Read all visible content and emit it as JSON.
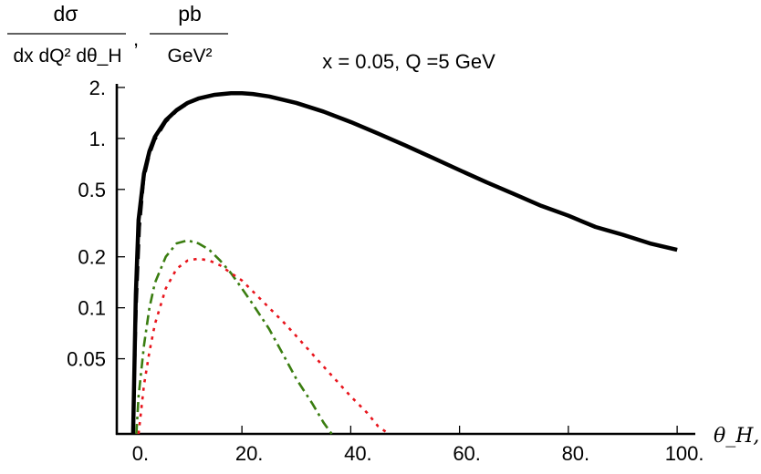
{
  "chart_data": {
    "type": "line",
    "title": "x = 0.05, Q =5 GeV",
    "ylabel": {
      "left_numerator": "dσ",
      "left_denominator": "dx dQ² dθ_H",
      "separator": ",",
      "right_numerator": "pb",
      "right_denominator": "GeV²"
    },
    "xlabel": "θ_H,°",
    "xlim": [
      -3,
      103
    ],
    "ylim": [
      0.018,
      2.1
    ],
    "yscale": "log",
    "xticks": [
      0,
      20,
      40,
      60,
      80,
      100
    ],
    "xtick_labels": [
      "0.",
      "20.",
      "40.",
      "60.",
      "80.",
      "100."
    ],
    "yticks": [
      0.05,
      0.1,
      0.2,
      0.5,
      1,
      2
    ],
    "ytick_labels": [
      "0.05",
      "0.1",
      "0.2",
      "0.5",
      "1.",
      "2."
    ],
    "grid": false,
    "series": [
      {
        "style": "solid",
        "color": "#000000",
        "x": [
          0,
          0.5,
          1,
          2,
          3,
          4,
          6,
          8,
          10,
          12,
          15,
          18,
          20,
          22,
          25,
          30,
          35,
          40,
          45,
          50,
          55,
          60,
          65,
          70,
          75,
          80,
          85,
          90,
          95,
          100
        ],
        "y": [
          0.018,
          0.12,
          0.33,
          0.62,
          0.84,
          1.02,
          1.28,
          1.47,
          1.62,
          1.72,
          1.81,
          1.85,
          1.85,
          1.83,
          1.77,
          1.62,
          1.44,
          1.25,
          1.07,
          0.91,
          0.77,
          0.65,
          0.55,
          0.47,
          0.4,
          0.35,
          0.3,
          0.27,
          0.24,
          0.22
        ]
      },
      {
        "style": "dashed",
        "color": "#000000",
        "x": [
          0,
          0.6,
          1.2,
          2,
          3,
          4,
          6,
          8,
          10,
          12,
          15,
          18,
          20,
          22,
          25,
          30,
          35,
          40,
          45,
          50,
          55,
          60,
          65,
          70,
          75,
          80,
          85,
          90,
          95,
          100
        ],
        "y": [
          0.018,
          0.1,
          0.3,
          0.58,
          0.8,
          0.98,
          1.25,
          1.45,
          1.6,
          1.71,
          1.8,
          1.84,
          1.85,
          1.83,
          1.77,
          1.62,
          1.44,
          1.25,
          1.07,
          0.91,
          0.77,
          0.65,
          0.55,
          0.47,
          0.4,
          0.35,
          0.3,
          0.27,
          0.24,
          0.22
        ]
      },
      {
        "style": "dashdot",
        "color": "#3a7d10",
        "x": [
          0.6,
          1,
          2,
          3,
          4,
          6,
          8,
          10,
          12,
          14,
          16,
          18,
          20,
          22,
          25,
          28,
          30,
          33,
          35,
          36.5
        ],
        "y": [
          0.018,
          0.03,
          0.06,
          0.1,
          0.14,
          0.2,
          0.24,
          0.25,
          0.24,
          0.22,
          0.19,
          0.16,
          0.13,
          0.105,
          0.075,
          0.05,
          0.038,
          0.027,
          0.021,
          0.018
        ]
      },
      {
        "style": "dotted",
        "color": "#e8141c",
        "x": [
          1,
          2,
          3,
          4,
          6,
          8,
          10,
          12,
          14,
          16,
          18,
          20,
          22,
          25,
          28,
          30,
          35,
          40,
          43,
          45,
          47
        ],
        "y": [
          0.018,
          0.035,
          0.055,
          0.08,
          0.13,
          0.17,
          0.19,
          0.195,
          0.19,
          0.178,
          0.16,
          0.145,
          0.125,
          0.1,
          0.08,
          0.068,
          0.045,
          0.03,
          0.024,
          0.02,
          0.018
        ]
      }
    ]
  }
}
